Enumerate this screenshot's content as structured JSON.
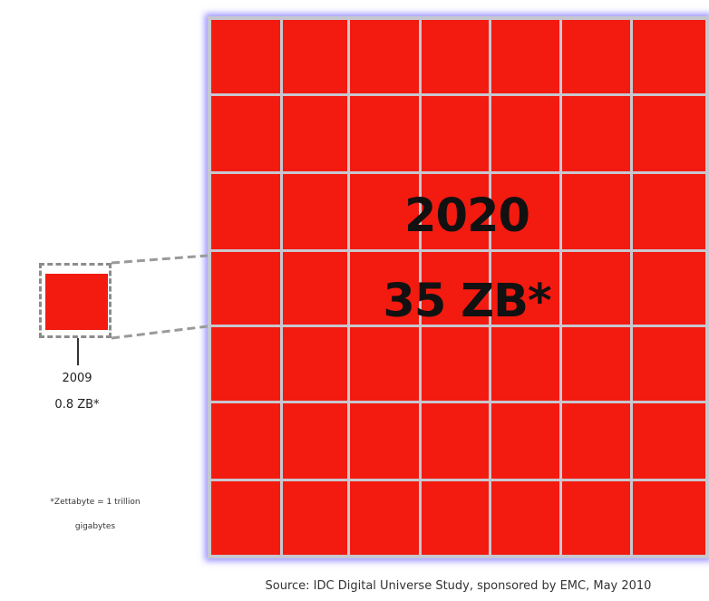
{
  "big_block": {
    "year": "2020",
    "size": "35 ZB*",
    "color": "#f31a10"
  },
  "small_block": {
    "year": "2009",
    "size": "0.8 ZB*",
    "color": "#f31a10"
  },
  "footnote": {
    "line1": "*Zettabyte = 1 trillion",
    "line2": "gigabytes"
  },
  "source": "Source: IDC Digital Universe Study, sponsored by EMC, May 2010"
}
